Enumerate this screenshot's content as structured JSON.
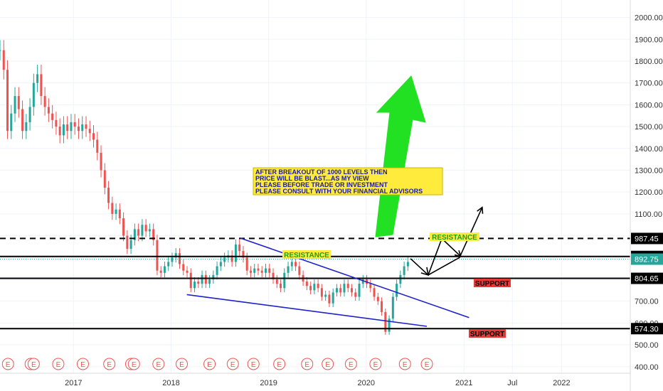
{
  "chart_data": {
    "type": "candlestick",
    "y_axis": {
      "position": "right",
      "range": [
        370,
        2080
      ],
      "ticks": [
        "400.00",
        "500.00",
        "600.00",
        "700.00",
        "800.00",
        "900.00",
        "1000.00",
        "1100.00",
        "1200.00",
        "1300.00",
        "1400.00",
        "1500.00",
        "1600.00",
        "1700.00",
        "1800.00",
        "1900.00",
        "2000.00"
      ]
    },
    "x_axis": {
      "range": [
        "2016-04-01",
        "2022-09-15"
      ],
      "ticks": [
        {
          "date": "2017-01-01",
          "label": "2017"
        },
        {
          "date": "2018-01-01",
          "label": "2018"
        },
        {
          "date": "2019-01-01",
          "label": "2019"
        },
        {
          "date": "2020-01-01",
          "label": "2020"
        },
        {
          "date": "2021-01-01",
          "label": "2021"
        },
        {
          "date": "2021-07-01",
          "label": "Jul"
        },
        {
          "date": "2022-01-01",
          "label": "2022"
        }
      ]
    },
    "candles_weekly_close": [
      [
        "2016-04-01",
        1850
      ],
      [
        "2016-04-15",
        1760
      ],
      [
        "2016-04-29",
        1480
      ],
      [
        "2016-05-13",
        1560
      ],
      [
        "2016-05-27",
        1640
      ],
      [
        "2016-06-10",
        1580
      ],
      [
        "2016-06-24",
        1480
      ],
      [
        "2016-07-08",
        1520
      ],
      [
        "2016-07-22",
        1590
      ],
      [
        "2016-08-05",
        1700
      ],
      [
        "2016-08-19",
        1740
      ],
      [
        "2016-09-02",
        1640
      ],
      [
        "2016-09-16",
        1590
      ],
      [
        "2016-09-30",
        1560
      ],
      [
        "2016-10-14",
        1530
      ],
      [
        "2016-10-28",
        1500
      ],
      [
        "2016-11-11",
        1460
      ],
      [
        "2016-11-25",
        1510
      ],
      [
        "2016-12-09",
        1480
      ],
      [
        "2016-12-23",
        1520
      ],
      [
        "2017-01-06",
        1500
      ],
      [
        "2017-01-20",
        1480
      ],
      [
        "2017-02-03",
        1510
      ],
      [
        "2017-02-17",
        1490
      ],
      [
        "2017-03-03",
        1470
      ],
      [
        "2017-03-17",
        1440
      ],
      [
        "2017-03-31",
        1380
      ],
      [
        "2017-04-14",
        1300
      ],
      [
        "2017-04-28",
        1220
      ],
      [
        "2017-05-12",
        1150
      ],
      [
        "2017-05-26",
        1100
      ],
      [
        "2017-06-09",
        1120
      ],
      [
        "2017-06-23",
        1080
      ],
      [
        "2017-07-07",
        1000
      ],
      [
        "2017-07-21",
        940
      ],
      [
        "2017-08-04",
        980
      ],
      [
        "2017-08-18",
        1030
      ],
      [
        "2017-09-01",
        1000
      ],
      [
        "2017-09-15",
        1050
      ],
      [
        "2017-09-29",
        1020
      ],
      [
        "2017-10-13",
        1030
      ],
      [
        "2017-10-27",
        980
      ],
      [
        "2017-11-10",
        840
      ],
      [
        "2017-11-24",
        830
      ],
      [
        "2017-12-08",
        860
      ],
      [
        "2017-12-22",
        880
      ],
      [
        "2018-01-05",
        900
      ],
      [
        "2018-01-19",
        920
      ],
      [
        "2018-02-02",
        870
      ],
      [
        "2018-02-16",
        840
      ],
      [
        "2018-03-02",
        830
      ],
      [
        "2018-03-16",
        760
      ],
      [
        "2018-03-30",
        790
      ],
      [
        "2018-04-13",
        780
      ],
      [
        "2018-04-27",
        820
      ],
      [
        "2018-05-11",
        780
      ],
      [
        "2018-05-25",
        800
      ],
      [
        "2018-06-08",
        820
      ],
      [
        "2018-06-22",
        860
      ],
      [
        "2018-07-06",
        880
      ],
      [
        "2018-07-20",
        900
      ],
      [
        "2018-08-03",
        910
      ],
      [
        "2018-08-17",
        880
      ],
      [
        "2018-08-31",
        960
      ],
      [
        "2018-09-14",
        930
      ],
      [
        "2018-09-28",
        900
      ],
      [
        "2018-10-12",
        840
      ],
      [
        "2018-10-26",
        830
      ],
      [
        "2018-11-09",
        850
      ],
      [
        "2018-11-23",
        840
      ],
      [
        "2018-12-07",
        830
      ],
      [
        "2018-12-21",
        850
      ],
      [
        "2019-01-04",
        830
      ],
      [
        "2019-01-18",
        800
      ],
      [
        "2019-02-01",
        780
      ],
      [
        "2019-02-15",
        760
      ],
      [
        "2019-03-01",
        830
      ],
      [
        "2019-03-15",
        860
      ],
      [
        "2019-03-29",
        880
      ],
      [
        "2019-04-12",
        860
      ],
      [
        "2019-04-26",
        820
      ],
      [
        "2019-05-10",
        790
      ],
      [
        "2019-05-24",
        770
      ],
      [
        "2019-06-07",
        750
      ],
      [
        "2019-06-21",
        780
      ],
      [
        "2019-07-05",
        760
      ],
      [
        "2019-07-19",
        720
      ],
      [
        "2019-08-02",
        730
      ],
      [
        "2019-08-16",
        690
      ],
      [
        "2019-08-30",
        740
      ],
      [
        "2019-09-13",
        760
      ],
      [
        "2019-09-27",
        740
      ],
      [
        "2019-10-11",
        780
      ],
      [
        "2019-10-25",
        760
      ],
      [
        "2019-11-08",
        740
      ],
      [
        "2019-11-22",
        720
      ],
      [
        "2019-12-06",
        780
      ],
      [
        "2019-12-20",
        800
      ],
      [
        "2020-01-03",
        780
      ],
      [
        "2020-01-17",
        760
      ],
      [
        "2020-01-31",
        720
      ],
      [
        "2020-02-14",
        700
      ],
      [
        "2020-02-28",
        650
      ],
      [
        "2020-03-13",
        560
      ],
      [
        "2020-03-27",
        620
      ],
      [
        "2020-04-10",
        720
      ],
      [
        "2020-04-24",
        780
      ],
      [
        "2020-05-08",
        820
      ],
      [
        "2020-05-22",
        860
      ],
      [
        "2020-06-05",
        880
      ]
    ],
    "horizontal_levels": [
      {
        "value": 987.45,
        "label": "987.45",
        "style": "dashed"
      },
      {
        "value": 905.0,
        "label": "905.00",
        "style": "solid"
      },
      {
        "value": 804.65,
        "label": "804.65",
        "style": "solid"
      },
      {
        "value": 574.3,
        "label": "574.30",
        "style": "solid"
      }
    ],
    "last_price": {
      "value": 892.75,
      "label": "892.75",
      "color": "#26a69a"
    },
    "trendlines": [
      {
        "start": [
          "2018-09-15",
          990
        ],
        "end": [
          "2021-01-20",
          625
        ],
        "color": "#1e22c8"
      },
      {
        "start": [
          "2018-03-01",
          730
        ],
        "end": [
          "2020-08-15",
          585
        ],
        "color": "#1e22c8"
      }
    ],
    "annotations": [
      {
        "text": "RESISTANCE",
        "style": "yellow-green"
      },
      {
        "text": "RESISTANCE",
        "style": "yellow-green"
      },
      {
        "text": "SUPPORT",
        "style": "red"
      },
      {
        "text": "SUPPORT",
        "style": "red"
      }
    ],
    "note_lines": [
      "AFTER BREAKOUT OF 1000 LEVELS THEN",
      "PRICE WILL BE BLAST...AS MY VIEW",
      "PLEASE BEFORE TRADE OR INVESTMENT",
      "PLEASE CONSULT WITH YOUR FINANCIAL ADVISORS"
    ],
    "earnings_marker": "E",
    "earnings_dates": [
      "2016-05-01",
      "2016-07-25",
      "2016-08-05",
      "2016-11-05",
      "2017-02-05",
      "2017-05-15",
      "2017-08-05",
      "2017-08-15",
      "2017-11-15",
      "2018-02-10",
      "2018-05-25",
      "2018-08-20",
      "2018-11-05",
      "2019-02-10",
      "2019-05-25",
      "2019-08-10",
      "2019-11-05",
      "2020-02-05",
      "2020-05-25",
      "2020-08-15"
    ],
    "projection_path": [
      [
        "2020-06-15",
        895
      ],
      [
        "2020-08-20",
        820
      ],
      [
        "2020-12-15",
        900
      ],
      [
        "2021-03-10",
        1130
      ]
    ],
    "projection_path_2": [
      [
        "2020-08-20",
        820
      ],
      [
        "2020-10-10",
        987
      ],
      [
        "2020-12-20",
        905
      ]
    ],
    "colors": {
      "up": "#26a69a",
      "down": "#ef5350",
      "big_arrow": "#22e022",
      "level": "#000000"
    }
  }
}
